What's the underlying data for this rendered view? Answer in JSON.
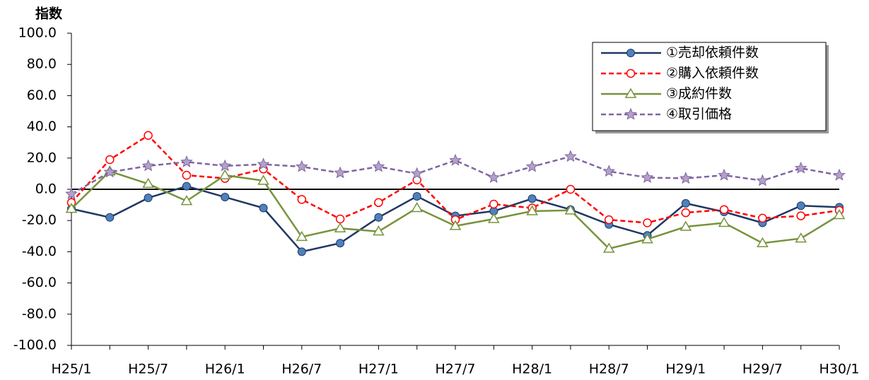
{
  "chart_data": {
    "type": "line",
    "y_title": "指数",
    "categories": [
      "H25/1",
      null,
      "H25/7",
      null,
      "H26/1",
      null,
      "H26/7",
      null,
      "H27/1",
      null,
      "H27/7",
      null,
      "H28/1",
      null,
      "H28/7",
      null,
      "H29/1",
      null,
      "H29/7",
      null,
      "H30/1"
    ],
    "series": [
      {
        "name": "①売却依頼件数",
        "color": "#1f3864",
        "marker": "circle",
        "dash": false,
        "values": [
          -12.5,
          -18,
          -5.5,
          2,
          -5,
          -12,
          -40,
          -34.5,
          -18,
          -4.5,
          -17,
          -14,
          -6,
          -13,
          -22.5,
          -29.5,
          -9,
          -14.5,
          -21.5,
          -10.5,
          -11.5
        ]
      },
      {
        "name": "②購入依頼件数",
        "color": "#ff0000",
        "marker": "open-circle",
        "dash": true,
        "values": [
          -8.5,
          19,
          34.5,
          9,
          7,
          13,
          -6.5,
          -19,
          -8.5,
          6,
          -19.5,
          -9.5,
          -12,
          0,
          -19.5,
          -21.5,
          -15,
          -13,
          -18.5,
          -17,
          -13.5
        ]
      },
      {
        "name": "③成約件数",
        "color": "#77933c",
        "marker": "triangle",
        "dash": false,
        "values": [
          -12.5,
          11.5,
          3.5,
          -7.5,
          9,
          5.5,
          -30.5,
          -25,
          -27,
          -12,
          -23.5,
          -19,
          -14,
          -13.5,
          -38,
          -32,
          -24,
          -21.5,
          -34.5,
          -31.5,
          -16.5
        ]
      },
      {
        "name": "④取引価格",
        "color": "#8064a2",
        "marker": "star",
        "dash": true,
        "values": [
          -3,
          11,
          15,
          17.5,
          15,
          16,
          14.5,
          10.5,
          14.5,
          10,
          18.5,
          7.5,
          14.5,
          21,
          11.5,
          7.5,
          7,
          9,
          5.5,
          13.5,
          9
        ]
      }
    ],
    "ylim": [
      -100,
      100
    ],
    "yticks": [
      {
        "value": -100,
        "label": "-100.0"
      },
      {
        "value": -80,
        "label": "-80.0"
      },
      {
        "value": -60,
        "label": "-60.0"
      },
      {
        "value": -40,
        "label": "-40.0"
      },
      {
        "value": -20,
        "label": "-20.0"
      },
      {
        "value": 0,
        "label": "0.0"
      },
      {
        "value": 20,
        "label": "20.0"
      },
      {
        "value": 40,
        "label": "40.0"
      },
      {
        "value": 60,
        "label": "60.0"
      },
      {
        "value": 80,
        "label": "80.0"
      },
      {
        "value": 100,
        "label": "100.0"
      }
    ],
    "grid": false,
    "legend": "top-right"
  }
}
